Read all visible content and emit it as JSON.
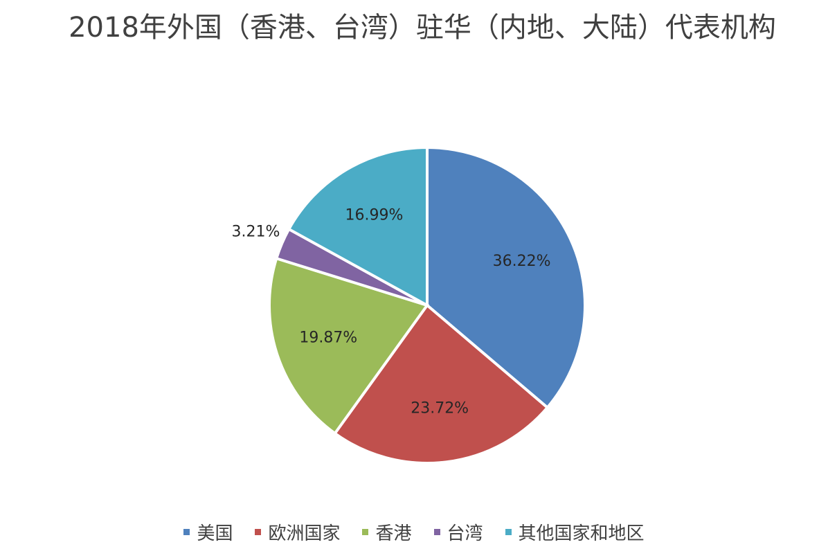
{
  "chart_data": {
    "type": "pie",
    "title": "2018年外国（香港、台湾）驻华（内地、大陆）代表机构",
    "categories": [
      "美国",
      "欧洲国家",
      "香港",
      "台湾",
      "其他国家和地区"
    ],
    "values": [
      36.22,
      23.72,
      19.87,
      3.21,
      16.99
    ],
    "value_labels": [
      "36.22%",
      "23.72%",
      "19.87%",
      "3.21%",
      "16.99%"
    ],
    "colors": [
      "#4f81bd",
      "#c0504d",
      "#9bbb59",
      "#8064a2",
      "#4bacc6"
    ],
    "legend": "bottom"
  }
}
